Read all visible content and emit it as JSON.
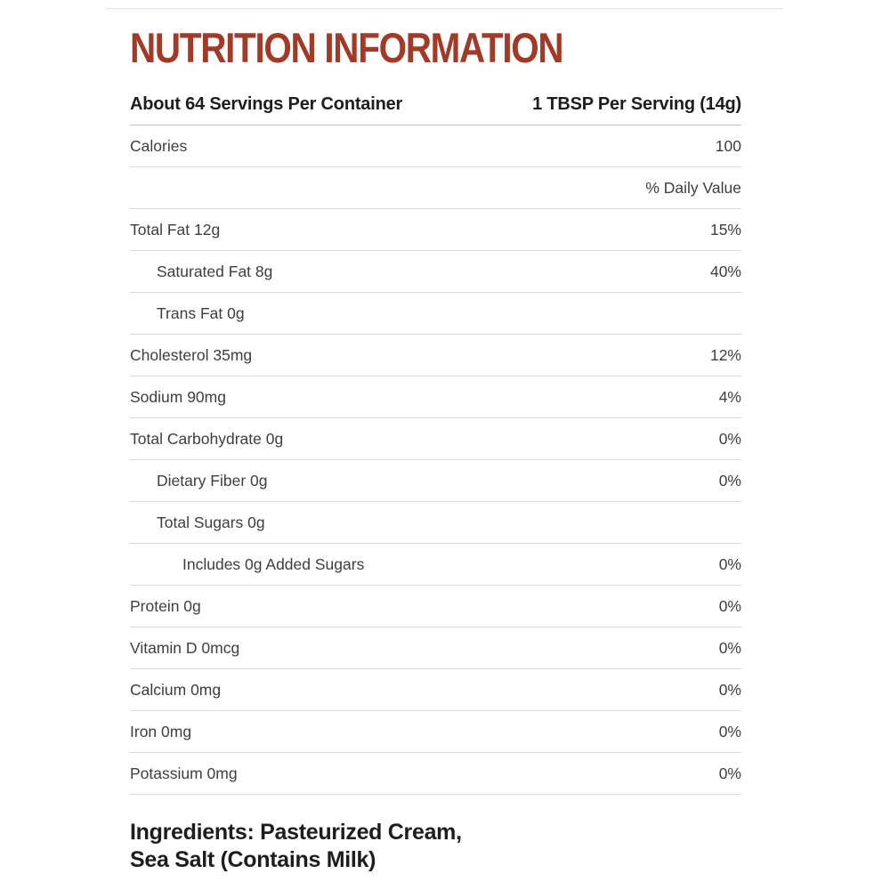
{
  "title": "NUTRITION INFORMATION",
  "header": {
    "servings_per_container": "About 64 Servings Per Container",
    "serving_size": "1 TBSP Per Serving (14g)"
  },
  "table": {
    "rows": [
      {
        "label": "Calories",
        "value": "100",
        "indent": 0
      },
      {
        "label": "",
        "value": "% Daily Value",
        "indent": 0
      },
      {
        "label": "Total Fat 12g",
        "value": "15%",
        "indent": 0
      },
      {
        "label": "Saturated Fat 8g",
        "value": "40%",
        "indent": 1
      },
      {
        "label": "Trans Fat 0g",
        "value": "",
        "indent": 1
      },
      {
        "label": "Cholesterol 35mg",
        "value": "12%",
        "indent": 0
      },
      {
        "label": "Sodium 90mg",
        "value": "4%",
        "indent": 0
      },
      {
        "label": "Total Carbohydrate 0g",
        "value": "0%",
        "indent": 0
      },
      {
        "label": "Dietary Fiber 0g",
        "value": "0%",
        "indent": 1
      },
      {
        "label": "Total Sugars 0g",
        "value": "",
        "indent": 1
      },
      {
        "label": "Includes 0g Added Sugars",
        "value": "0%",
        "indent": 2
      },
      {
        "label": "Protein 0g",
        "value": "0%",
        "indent": 0
      },
      {
        "label": "Vitamin D 0mcg",
        "value": "0%",
        "indent": 0
      },
      {
        "label": "Calcium 0mg",
        "value": "0%",
        "indent": 0
      },
      {
        "label": "Iron 0mg",
        "value": "0%",
        "indent": 0
      },
      {
        "label": "Potassium 0mg",
        "value": "0%",
        "indent": 0
      }
    ]
  },
  "ingredients": {
    "line1": "Ingredients: Pasteurized Cream,",
    "line2": "Sea Salt (Contains Milk)"
  },
  "colors": {
    "title_red": "#a23a28",
    "heading_text": "#1d1d1d",
    "body_text": "#3e3e3e",
    "row_divider": "#d9d9d9",
    "header_divider": "#bdbdbd",
    "top_border": "#e2e2e2",
    "background": "#ffffff"
  }
}
